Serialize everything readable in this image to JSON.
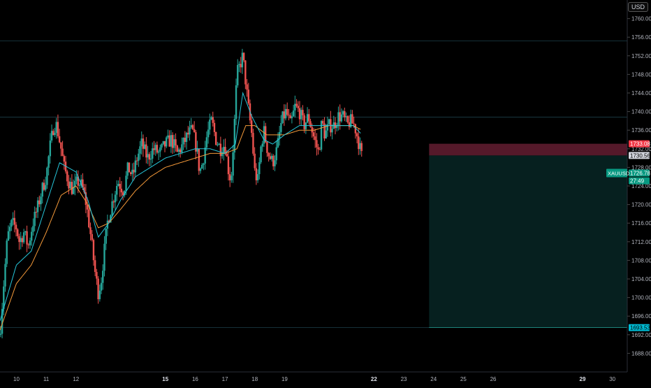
{
  "currency_label": "USD",
  "colors": {
    "background": "#000000",
    "up": "#26a69a",
    "down": "#ef5350",
    "ema_fast": "#26c6da",
    "ema_slow": "#f59a3a",
    "stop_zone": "#5a1a2c",
    "target_zone": "#06201f",
    "axis_text": "#b2b5be",
    "grid_line": "#12303a"
  },
  "chart_data": {
    "type": "candlestick",
    "symbol": "XAUUSD",
    "price_axis": {
      "ylim": [
        1684,
        1764
      ],
      "ticks": [
        1688,
        1692,
        1696,
        1700,
        1704,
        1708,
        1712,
        1716,
        1720,
        1724,
        1728,
        1732,
        1736,
        1740,
        1744,
        1748,
        1752,
        1756,
        1760
      ],
      "tick_labels": [
        "1688.00",
        "1692.00",
        "1696.00",
        "1700.00",
        "1704.00",
        "1708.00",
        "1712.00",
        "1716.00",
        "1720.00",
        "1724.00",
        "1728.00",
        "1732.00",
        "1736.00",
        "1740.00",
        "1744.00",
        "1748.00",
        "1752.00",
        "1756.00",
        "1760.00"
      ]
    },
    "time_axis": {
      "xlim": [
        9.45,
        30.5
      ],
      "ticks": [
        10,
        11,
        12,
        15,
        16,
        17,
        18,
        19,
        22,
        23,
        24,
        25,
        26,
        29,
        30
      ],
      "tick_labels": [
        "10",
        "11",
        "12",
        "15",
        "16",
        "17",
        "18",
        "19",
        "22",
        "23",
        "24",
        "25",
        "26",
        "29",
        "30"
      ],
      "bold": [
        "15",
        "22",
        "29"
      ]
    },
    "horizontal_lines": [
      1755.2,
      1738.8,
      1693.53
    ],
    "position_tool": {
      "entry": 1730.56,
      "stop": 1733.08,
      "target": 1693.53,
      "start": 23.85,
      "end": 30.5
    },
    "price_labels": [
      {
        "text": "1733.08",
        "value": 1733.08,
        "style": "stop"
      },
      {
        "text": "1730.56",
        "value": 1730.56,
        "style": "entry"
      },
      {
        "text": "1726.78",
        "value": 1726.78,
        "style": "last"
      },
      {
        "text": "27:49",
        "value": 1725.1,
        "style": "countdown"
      },
      {
        "text": "1693.53",
        "value": 1693.53,
        "style": "target"
      }
    ],
    "last_price": {
      "symbol": "XAUUSD",
      "price": "1726.78",
      "countdown": "27:49"
    },
    "ohlc_anchors": [
      [
        9.45,
        1692
      ],
      [
        9.55,
        1701
      ],
      [
        9.7,
        1713
      ],
      [
        9.85,
        1716
      ],
      [
        10.0,
        1715
      ],
      [
        10.1,
        1712
      ],
      [
        10.25,
        1714
      ],
      [
        10.4,
        1711
      ],
      [
        10.55,
        1716
      ],
      [
        10.7,
        1719
      ],
      [
        10.85,
        1723
      ],
      [
        11.0,
        1726
      ],
      [
        11.12,
        1732
      ],
      [
        11.25,
        1737
      ],
      [
        11.35,
        1737
      ],
      [
        11.5,
        1732
      ],
      [
        11.6,
        1728
      ],
      [
        11.75,
        1725
      ],
      [
        11.9,
        1723
      ],
      [
        12.05,
        1725
      ],
      [
        12.2,
        1724
      ],
      [
        12.35,
        1720
      ],
      [
        12.5,
        1713
      ],
      [
        12.65,
        1705
      ],
      [
        12.75,
        1701
      ],
      [
        12.85,
        1704
      ],
      [
        12.95,
        1710
      ],
      [
        13.05,
        1716
      ],
      [
        13.2,
        1720
      ],
      [
        13.4,
        1725
      ],
      [
        13.6,
        1723
      ],
      [
        13.75,
        1728
      ],
      [
        13.9,
        1726
      ],
      [
        14.05,
        1730
      ],
      [
        14.2,
        1733
      ],
      [
        14.4,
        1730
      ],
      [
        14.6,
        1732
      ],
      [
        14.8,
        1731
      ],
      [
        15.0,
        1733
      ],
      [
        15.2,
        1734
      ],
      [
        15.4,
        1731
      ],
      [
        15.6,
        1733
      ],
      [
        15.75,
        1735
      ],
      [
        15.9,
        1736
      ],
      [
        16.05,
        1732
      ],
      [
        16.15,
        1727
      ],
      [
        16.25,
        1729
      ],
      [
        16.4,
        1735
      ],
      [
        16.55,
        1738
      ],
      [
        16.7,
        1734
      ],
      [
        16.85,
        1732
      ],
      [
        17.0,
        1733
      ],
      [
        17.1,
        1728
      ],
      [
        17.2,
        1725
      ],
      [
        17.3,
        1735
      ],
      [
        17.4,
        1748
      ],
      [
        17.5,
        1750
      ],
      [
        17.6,
        1752
      ],
      [
        17.7,
        1746
      ],
      [
        17.8,
        1740
      ],
      [
        17.9,
        1735
      ],
      [
        18.0,
        1727
      ],
      [
        18.1,
        1725
      ],
      [
        18.2,
        1732
      ],
      [
        18.3,
        1736
      ],
      [
        18.45,
        1731
      ],
      [
        18.6,
        1729
      ],
      [
        18.75,
        1732
      ],
      [
        18.9,
        1738
      ],
      [
        19.05,
        1740
      ],
      [
        19.2,
        1737
      ],
      [
        19.35,
        1741
      ],
      [
        19.5,
        1740
      ],
      [
        19.65,
        1737
      ],
      [
        19.8,
        1739
      ],
      [
        20.0,
        1734
      ],
      [
        20.15,
        1731
      ],
      [
        20.25,
        1738
      ],
      [
        20.35,
        1735
      ],
      [
        20.5,
        1737
      ],
      [
        20.65,
        1737
      ],
      [
        20.8,
        1739
      ],
      [
        20.95,
        1739
      ],
      [
        21.1,
        1737
      ],
      [
        21.2,
        1738
      ],
      [
        21.35,
        1737
      ],
      [
        21.5,
        1733
      ],
      [
        21.6,
        1730
      ]
    ],
    "ema_fast_anchors": [
      [
        9.45,
        1695
      ],
      [
        10.0,
        1707
      ],
      [
        10.5,
        1710
      ],
      [
        11.0,
        1720
      ],
      [
        11.45,
        1729
      ],
      [
        12.0,
        1727
      ],
      [
        12.4,
        1721
      ],
      [
        12.75,
        1713
      ],
      [
        13.1,
        1716
      ],
      [
        13.5,
        1721
      ],
      [
        14.0,
        1726
      ],
      [
        14.5,
        1728
      ],
      [
        15.0,
        1730
      ],
      [
        15.5,
        1731
      ],
      [
        16.0,
        1732
      ],
      [
        16.5,
        1732
      ],
      [
        17.0,
        1731
      ],
      [
        17.35,
        1733
      ],
      [
        17.6,
        1744
      ],
      [
        17.9,
        1739
      ],
      [
        18.3,
        1734
      ],
      [
        18.6,
        1733
      ],
      [
        19.0,
        1735
      ],
      [
        19.5,
        1737
      ],
      [
        20.0,
        1737
      ],
      [
        20.5,
        1737
      ],
      [
        21.0,
        1737
      ],
      [
        21.3,
        1737
      ],
      [
        21.6,
        1735
      ]
    ],
    "ema_slow_anchors": [
      [
        9.45,
        1693
      ],
      [
        10.0,
        1703
      ],
      [
        10.5,
        1707
      ],
      [
        11.0,
        1714
      ],
      [
        11.5,
        1722
      ],
      [
        12.0,
        1724
      ],
      [
        12.4,
        1720
      ],
      [
        12.75,
        1715
      ],
      [
        13.1,
        1716
      ],
      [
        13.5,
        1719
      ],
      [
        14.0,
        1723
      ],
      [
        14.5,
        1726
      ],
      [
        15.0,
        1728
      ],
      [
        15.5,
        1729
      ],
      [
        16.0,
        1730
      ],
      [
        16.5,
        1731
      ],
      [
        17.0,
        1731
      ],
      [
        17.4,
        1732
      ],
      [
        17.7,
        1737
      ],
      [
        18.0,
        1737
      ],
      [
        18.4,
        1735
      ],
      [
        19.0,
        1735
      ],
      [
        19.5,
        1736
      ],
      [
        20.0,
        1736
      ],
      [
        20.5,
        1737
      ],
      [
        21.0,
        1737
      ],
      [
        21.3,
        1737
      ],
      [
        21.6,
        1736
      ]
    ]
  }
}
